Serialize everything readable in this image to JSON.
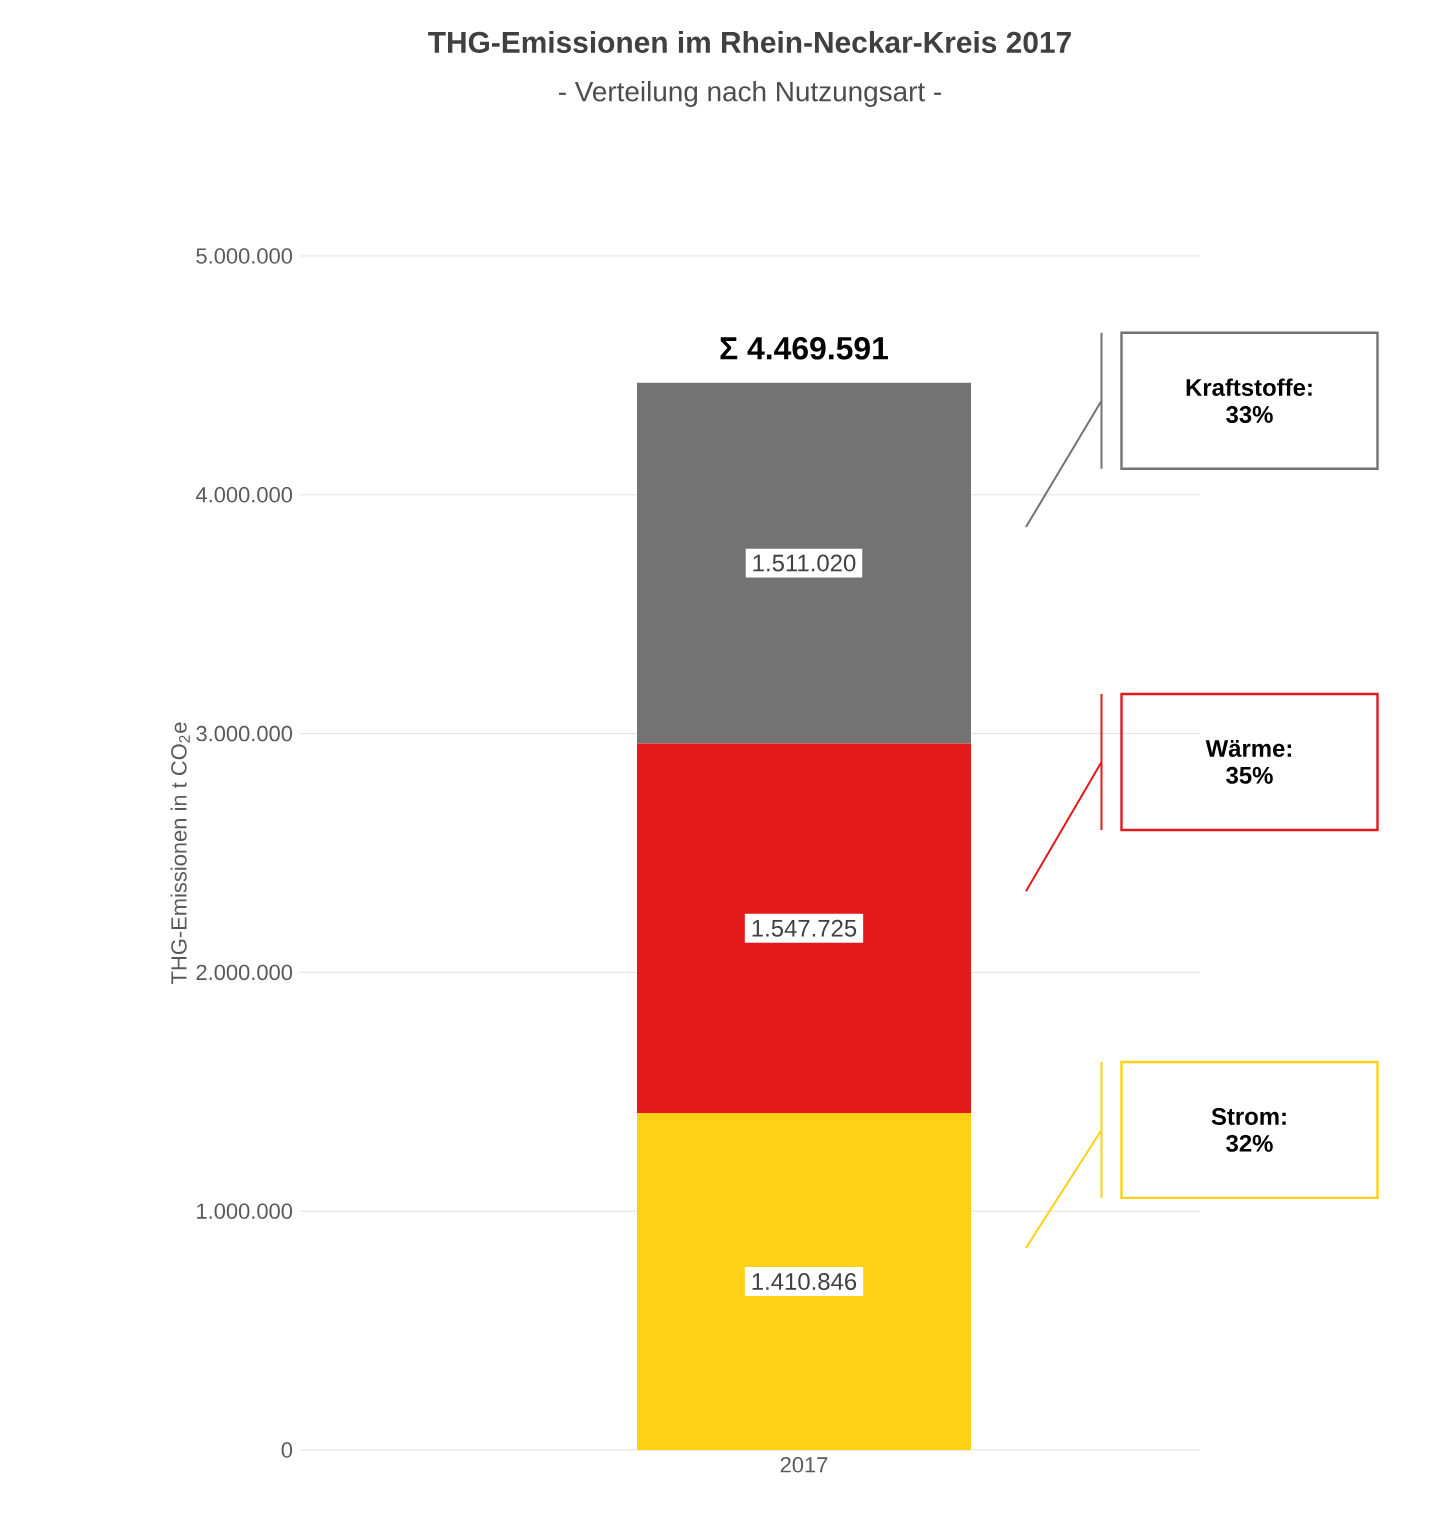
{
  "chart_data": {
    "type": "bar",
    "title": "THG-Emissionen im Rhein-Neckar-Kreis 2017",
    "subtitle": "- Verteilung nach Nutzungsart -",
    "ylabel": "THG-Emissionen in t CO$_{2}$e",
    "categories": [
      "2017"
    ],
    "stacked": true,
    "series": [
      {
        "name": "Strom:",
        "color": "#fcd116",
        "values": [
          1410846
        ],
        "value_labels": [
          "1.410.846"
        ]
      },
      {
        "name": "Wärme:",
        "color": "#e3191c",
        "values": [
          1547725
        ],
        "value_labels": [
          "1.547.725"
        ]
      },
      {
        "name": "Kraftstoffe:",
        "color": "#737373",
        "values": [
          1511020
        ],
        "value_labels": [
          "1.511.020"
        ]
      }
    ],
    "annotations": [
      "32%",
      "35%",
      "33%"
    ],
    "totals": [
      "Σ 4.469.591"
    ],
    "ylim": [
      0,
      5000000
    ],
    "yticks": [
      {
        "value": 0,
        "label": "0"
      },
      {
        "value": 1000000,
        "label": "1.000.000"
      },
      {
        "value": 2000000,
        "label": "2.000.000"
      },
      {
        "value": 3000000,
        "label": "3.000.000"
      },
      {
        "value": 4000000,
        "label": "4.000.000"
      },
      {
        "value": 5000000,
        "label": "5.000.000"
      }
    ],
    "grid": "y"
  }
}
